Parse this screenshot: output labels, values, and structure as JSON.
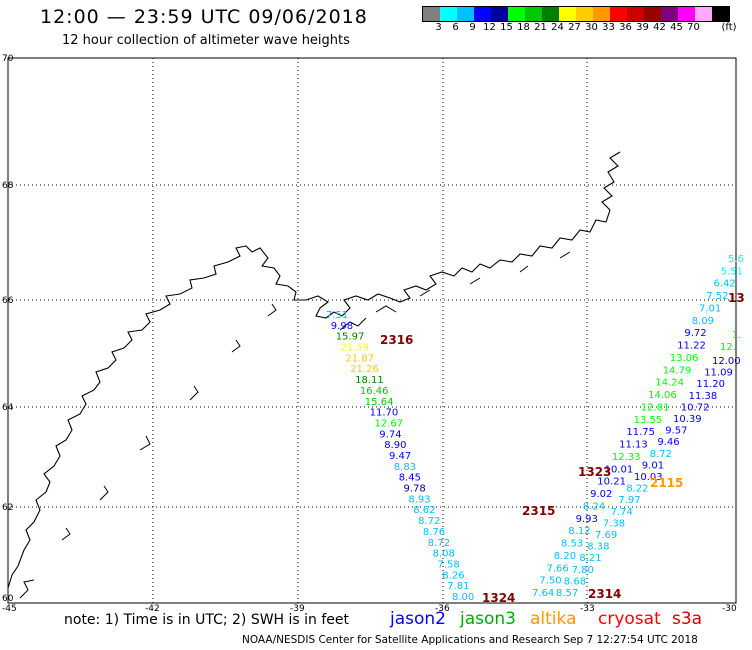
{
  "header": {
    "title": "12:00 — 23:59 UTC 09/06/2018",
    "subtitle": "12 hour collection of altimeter wave heights"
  },
  "legend": {
    "unit": "(ft)",
    "colors": [
      "#808080",
      "#00ffff",
      "#00bfff",
      "#0000ff",
      "#0000a0",
      "#00ff00",
      "#00c800",
      "#008000",
      "#ffff00",
      "#ffcc00",
      "#ff9900",
      "#ff0000",
      "#cc0000",
      "#990000",
      "#800080",
      "#ff00ff",
      "#ffaaff",
      "#000000"
    ],
    "labels": [
      "3",
      "6",
      "9",
      "12",
      "15",
      "18",
      "21",
      "24",
      "27",
      "30",
      "33",
      "36",
      "39",
      "42",
      "45",
      "70"
    ]
  },
  "axes": {
    "lon_labels": [
      "-45",
      "-42",
      "-39",
      "-36",
      "-33",
      "-30"
    ],
    "lat_labels": [
      "70",
      "68",
      "66",
      "64",
      "62",
      "60"
    ]
  },
  "passes": [
    {
      "label": "2316",
      "color": "#800000"
    },
    {
      "label": "2315",
      "color": "#800000"
    },
    {
      "label": "1323",
      "color": "#800000"
    },
    {
      "label": "2115",
      "color": "#ff9900"
    },
    {
      "label": "1324",
      "color": "#800000"
    },
    {
      "label": "2314",
      "color": "#800000"
    },
    {
      "label": "13",
      "color": "#800000"
    }
  ],
  "tracks": {
    "track_a": {
      "values": [
        "7.51",
        "9.98",
        "15.97",
        "21.59",
        "21.87",
        "21.26",
        "18.11",
        "16.46",
        "15.64",
        "11.70",
        "12.67",
        "9.74",
        "8.90",
        "9.47",
        "8.83",
        "8.45",
        "9.78",
        "8.93",
        "8.62",
        "8.72",
        "8.76",
        "8.72",
        "8.08",
        "7.58",
        "8.26",
        "7.81",
        "8.00"
      ],
      "colors": [
        "#00bfff",
        "#0000ff",
        "#008000",
        "#ffff00",
        "#ffcc00",
        "#ffcc00",
        "#008000",
        "#00c800",
        "#00c800",
        "#0000ff",
        "#00ff00",
        "#0000ff",
        "#0000ff",
        "#0000ff",
        "#00bfff",
        "#0000ff",
        "#0000a0",
        "#00bfff",
        "#00bfff",
        "#00bfff",
        "#00bfff",
        "#00bfff",
        "#00bfff",
        "#00bfff",
        "#00bfff",
        "#00bfff",
        "#00bfff"
      ]
    },
    "track_b": {
      "values": [
        "5.6",
        "5.51",
        "6.42",
        "7.52",
        "7.01",
        "8.09",
        "9.72",
        "11.22",
        "13.06",
        "14.79",
        "14.24",
        "14.06",
        "12.81",
        "13.55",
        "11.75",
        "11.13",
        "12.33",
        "10.01",
        "10.21",
        "9.02",
        "8.24",
        "9.93",
        "8.12",
        "8.53",
        "8.20",
        "7.66",
        "7.50",
        "7.64"
      ],
      "colors": [
        "#00ffff",
        "#00ffff",
        "#00bfff",
        "#00bfff",
        "#00bfff",
        "#00bfff",
        "#0000ff",
        "#0000ff",
        "#00ff00",
        "#00ff00",
        "#00ff00",
        "#00ff00",
        "#00ff00",
        "#00ff00",
        "#0000ff",
        "#0000ff",
        "#00ff00",
        "#0000ff",
        "#0000ff",
        "#0000ff",
        "#00bfff",
        "#0000ff",
        "#00bfff",
        "#00bfff",
        "#00bfff",
        "#00bfff",
        "#00bfff",
        "#00bfff"
      ]
    },
    "track_c": {
      "values": [
        "12.00",
        "11.09",
        "11.20",
        "11.38",
        "10.72",
        "10.39",
        "9.57",
        "9.46",
        "8.72",
        "9.01",
        "10.03",
        "8.22",
        "7.97",
        "7.74",
        "7.38",
        "7.69",
        "8.38",
        "8.21",
        "7.80",
        "8.68",
        "8.57"
      ],
      "colors": [
        "#0000a0",
        "#0000ff",
        "#0000ff",
        "#0000ff",
        "#0000ff",
        "#0000ff",
        "#0000ff",
        "#0000ff",
        "#00bfff",
        "#0000ff",
        "#0000ff",
        "#00bfff",
        "#00bfff",
        "#00bfff",
        "#00bfff",
        "#00bfff",
        "#00bfff",
        "#00bfff",
        "#00bfff",
        "#00bfff",
        "#00bfff"
      ]
    },
    "track_d": {
      "values": [
        "1.",
        "12."
      ],
      "colors": [
        "#00ff00",
        "#00ff00"
      ]
    }
  },
  "footer": {
    "note": "note: 1) Time is in UTC; 2) SWH is in feet",
    "satellites": [
      {
        "name": "jason2",
        "color": "#0000ff"
      },
      {
        "name": "jason3",
        "color": "#00aa00"
      },
      {
        "name": "altika",
        "color": "#ff9900"
      },
      {
        "name": "cryosat",
        "color": "#ff0000"
      },
      {
        "name": "s3a",
        "color": "#cc0000"
      }
    ],
    "credit": "NOAA/NESDIS Center for Satellite Applications and Research    Sep  7 12:27:54 UTC 2018"
  }
}
